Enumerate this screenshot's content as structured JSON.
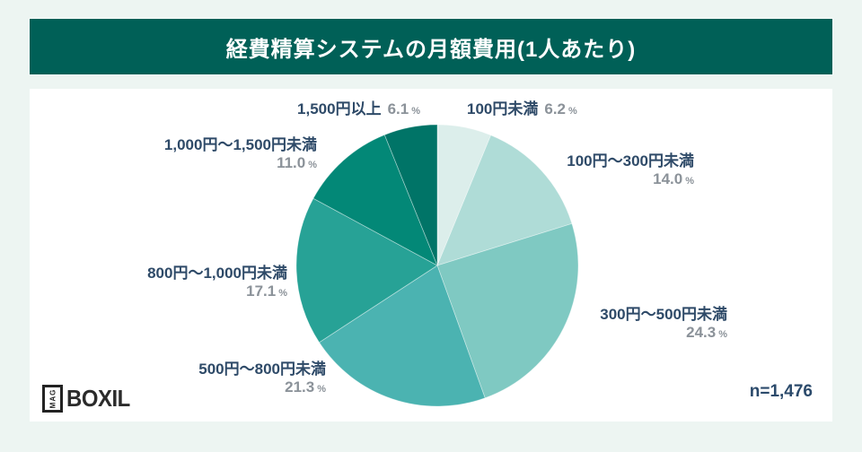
{
  "header": {
    "title": "経費精算システムの月額費用(1人あたり)"
  },
  "footer": {
    "sample_size": "n=1,476",
    "logo_mag": "MAG",
    "logo_name": "BOXIL"
  },
  "colors": {
    "page_bg": "#edf5f2",
    "banner_bg": "#006057",
    "card_bg": "#ffffff",
    "category_text": "#2e4a68",
    "percent_text": "#8b9299"
  },
  "chart_data": {
    "type": "pie",
    "title": "経費精算システムの月額費用(1人あたり)",
    "sample_size": "n=1,476",
    "direction": "clockwise",
    "start_angle": "12-oclock",
    "unit": "%",
    "categories": [
      "100円未満",
      "100円〜300円未満",
      "300円〜500円未満",
      "500円〜800円未満",
      "800円〜1,000円未満",
      "1,000円〜1,500円未満",
      "1,500円以上"
    ],
    "values": [
      6.2,
      14.0,
      24.3,
      21.3,
      17.1,
      11.0,
      6.1
    ],
    "pct_labels": [
      "6.2",
      "14.0",
      "24.3",
      "21.3",
      "17.1",
      "11.0",
      "6.1"
    ],
    "colors": [
      "#dceeeb",
      "#afdcd7",
      "#7fc9c2",
      "#4bb3b1",
      "#27a296",
      "#038877",
      "#007467"
    ]
  }
}
